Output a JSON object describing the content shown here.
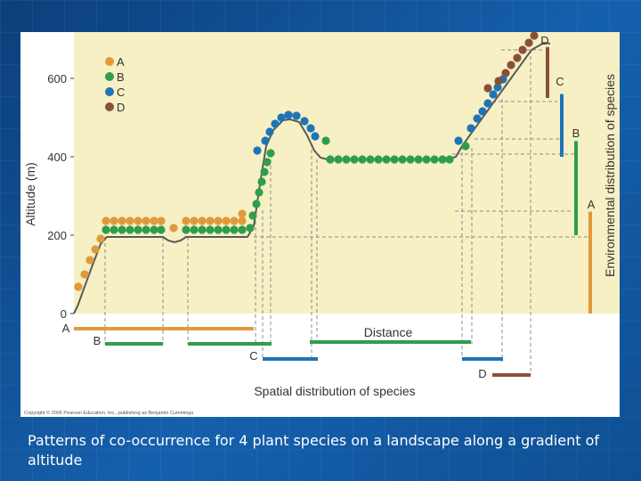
{
  "caption": "Patterns of co-occurrence for 4 plant species on a landscape along a gradient of altitude",
  "colors": {
    "plot_background": "#f6f0c4",
    "A": "#e09a3c",
    "B": "#2f9e4c",
    "C": "#1f74b8",
    "D": "#8a5035",
    "guide": "#8c8c8c",
    "terrain": "#5a5a5a"
  },
  "chart_data": {
    "type": "diagram",
    "y_axis": {
      "label": "Altitude (m)",
      "ticks": [
        0,
        200,
        400,
        600
      ]
    },
    "x_axis": {
      "label": "Distance"
    },
    "legend": {
      "placement": "top-left",
      "entries": [
        "A",
        "B",
        "C",
        "D"
      ]
    },
    "right_axis_label": "Environmental distribution of species",
    "bottom_label": "Spatial distribution of species",
    "copyright": "Copyright © 2006 Pearson Education, Inc., publishing as Benjamin Cummings",
    "environmental_ranges": [
      {
        "species": "A",
        "altitude": [
          0,
          260
        ]
      },
      {
        "species": "B",
        "altitude": [
          200,
          440
        ]
      },
      {
        "species": "C",
        "altitude": [
          400,
          560
        ]
      },
      {
        "species": "D",
        "altitude": [
          550,
          680
        ]
      }
    ],
    "spatial_labels": [
      "A",
      "B",
      "C",
      "D"
    ]
  }
}
